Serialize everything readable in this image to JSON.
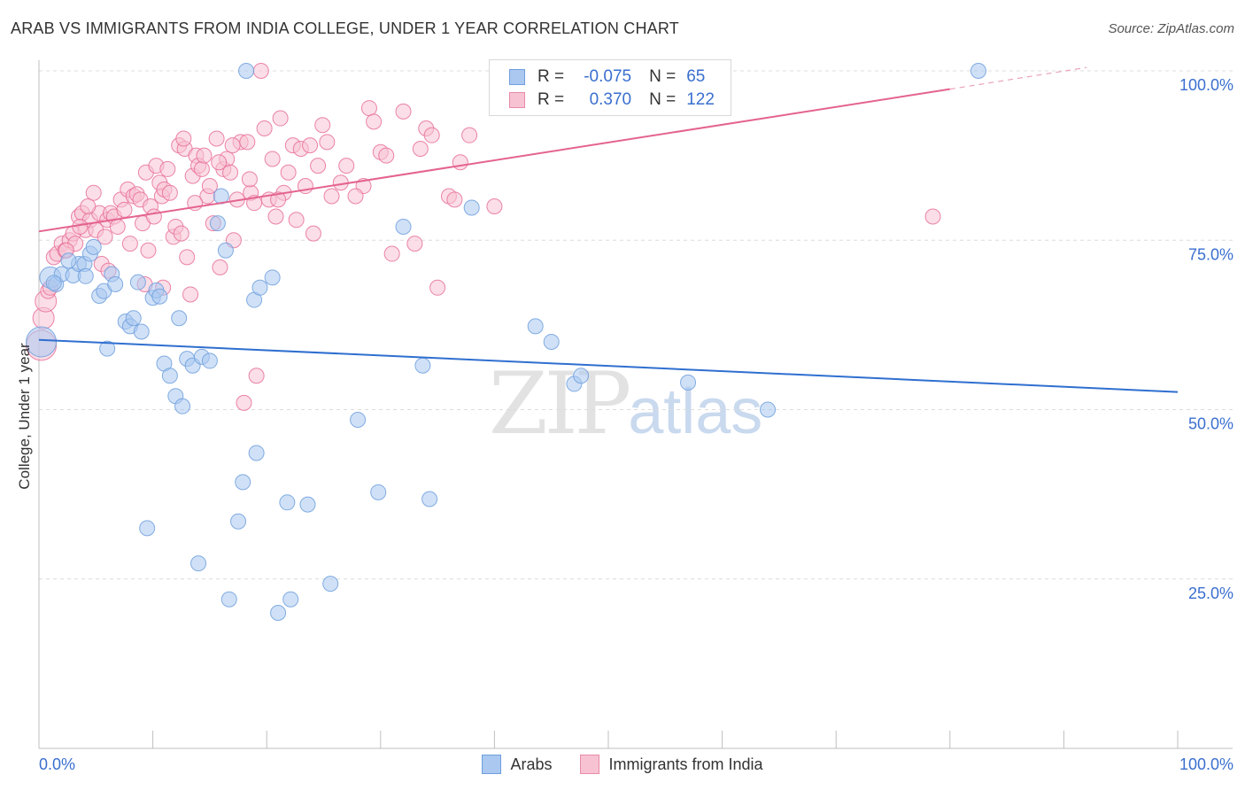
{
  "title": "ARAB VS IMMIGRANTS FROM INDIA COLLEGE, UNDER 1 YEAR CORRELATION CHART",
  "source": "Source: ZipAtlas.com",
  "watermark": {
    "zip": "ZIP",
    "atlas": "atlas"
  },
  "legend": {
    "rows": [
      {
        "r_label": "R =",
        "r_value": "-0.075",
        "n_label": "N =",
        "n_value": "65",
        "color": "#aac8f0",
        "border": "#6f9fdd"
      },
      {
        "r_label": "R =",
        "r_value": "0.370",
        "n_label": "N =",
        "n_value": "122",
        "color": "#f7c3d3",
        "border": "#e88aa8"
      }
    ]
  },
  "bottom_legend": [
    "Arabs",
    "Immigrants from India"
  ],
  "chart_data": {
    "type": "scatter",
    "title": "ARAB VS IMMIGRANTS FROM INDIA COLLEGE, UNDER 1 YEAR CORRELATION CHART",
    "xlabel": "",
    "ylabel": "College, Under 1 year",
    "xlim": [
      0,
      100
    ],
    "ylim": [
      0,
      104
    ],
    "x_tick_labels": [
      "0.0%",
      "100.0%"
    ],
    "y_tick_labels": [
      "25.0%",
      "50.0%",
      "75.0%",
      "100.0%"
    ],
    "y_ticks": [
      25,
      50,
      75,
      100
    ],
    "grid": true,
    "series": [
      {
        "name": "Arabs",
        "color": "#6f9fdd",
        "fill": "#aac8f0",
        "trend": {
          "x": [
            0,
            100
          ],
          "y": [
            60.3,
            52.6
          ]
        },
        "points": [
          [
            0.2,
            60.0,
            3
          ],
          [
            1.0,
            69.5,
            2
          ],
          [
            1.5,
            68.5,
            1
          ],
          [
            2.0,
            70.0,
            1
          ],
          [
            3.0,
            69.8,
            1
          ],
          [
            3.5,
            71.5,
            1
          ],
          [
            4.0,
            71.5,
            1
          ],
          [
            4.1,
            69.7,
            1
          ],
          [
            4.5,
            73.0,
            1
          ],
          [
            4.8,
            74.0,
            1
          ],
          [
            5.3,
            66.8,
            1
          ],
          [
            5.7,
            67.5,
            1
          ],
          [
            6.0,
            59.0,
            1
          ],
          [
            6.4,
            70.0,
            1
          ],
          [
            6.7,
            68.5,
            1
          ],
          [
            7.6,
            63.0,
            1
          ],
          [
            8.0,
            62.3,
            1
          ],
          [
            8.3,
            63.5,
            1
          ],
          [
            8.7,
            68.8,
            1
          ],
          [
            9.0,
            61.5,
            1
          ],
          [
            9.5,
            32.5,
            1
          ],
          [
            10.0,
            66.5,
            1
          ],
          [
            10.3,
            67.6,
            1
          ],
          [
            10.6,
            66.7,
            1
          ],
          [
            11.0,
            56.8,
            1
          ],
          [
            11.5,
            55.0,
            1
          ],
          [
            12.0,
            52.0,
            1
          ],
          [
            12.3,
            63.5,
            1
          ],
          [
            12.6,
            50.5,
            1
          ],
          [
            13.0,
            57.5,
            1
          ],
          [
            13.5,
            56.5,
            1
          ],
          [
            14.0,
            27.3,
            1
          ],
          [
            14.3,
            57.8,
            1
          ],
          [
            15.0,
            57.2,
            1
          ],
          [
            15.7,
            77.5,
            1
          ],
          [
            16.0,
            81.5,
            1
          ],
          [
            16.4,
            73.5,
            1
          ],
          [
            16.7,
            22.0,
            1
          ],
          [
            17.5,
            33.5,
            1
          ],
          [
            17.9,
            39.3,
            1
          ],
          [
            18.2,
            100.0,
            1
          ],
          [
            18.9,
            66.2,
            1
          ],
          [
            19.1,
            43.6,
            1
          ],
          [
            19.4,
            68.0,
            1
          ],
          [
            20.5,
            69.5,
            1
          ],
          [
            21.0,
            20.0,
            1
          ],
          [
            21.8,
            36.3,
            1
          ],
          [
            22.1,
            22.0,
            1
          ],
          [
            23.6,
            36.0,
            1
          ],
          [
            25.6,
            24.3,
            1
          ],
          [
            28.0,
            48.5,
            1
          ],
          [
            29.8,
            37.8,
            1
          ],
          [
            32.0,
            77.0,
            1
          ],
          [
            33.7,
            56.5,
            1
          ],
          [
            34.3,
            36.8,
            1
          ],
          [
            38.0,
            79.8,
            1
          ],
          [
            43.6,
            62.3,
            1
          ],
          [
            45.0,
            60.0,
            1
          ],
          [
            47.0,
            53.8,
            1
          ],
          [
            47.6,
            55.0,
            1
          ],
          [
            57.0,
            54.0,
            1
          ],
          [
            64.0,
            50.0,
            1
          ],
          [
            82.5,
            100.0,
            1
          ],
          [
            1.3,
            68.7,
            1
          ],
          [
            2.6,
            72.0,
            1
          ]
        ]
      },
      {
        "name": "Immigrants from India",
        "color": "#e8709a",
        "fill": "#f7c3d3",
        "trend": {
          "x": [
            0,
            80
          ],
          "y": [
            76.3,
            97.3
          ]
        },
        "trend_dashed": {
          "x": [
            80,
            92
          ],
          "y": [
            97.3,
            100.5
          ]
        },
        "points": [
          [
            0.2,
            59.5,
            3
          ],
          [
            0.4,
            63.5,
            2
          ],
          [
            0.6,
            66.0,
            2
          ],
          [
            0.8,
            67.5,
            1
          ],
          [
            1.3,
            72.5,
            1
          ],
          [
            1.6,
            73.0,
            1
          ],
          [
            2.0,
            74.5,
            1
          ],
          [
            2.3,
            73.5,
            1
          ],
          [
            2.7,
            75.0,
            1
          ],
          [
            3.0,
            76.0,
            1
          ],
          [
            3.2,
            74.5,
            1
          ],
          [
            3.5,
            78.5,
            1
          ],
          [
            3.8,
            79.0,
            1
          ],
          [
            4.1,
            76.5,
            1
          ],
          [
            4.5,
            78.0,
            1
          ],
          [
            4.8,
            82.0,
            1
          ],
          [
            5.0,
            76.5,
            1
          ],
          [
            5.3,
            79.0,
            1
          ],
          [
            5.5,
            71.5,
            1
          ],
          [
            5.8,
            75.5,
            1
          ],
          [
            6.0,
            78.0,
            1
          ],
          [
            6.3,
            79.0,
            1
          ],
          [
            6.6,
            78.5,
            1
          ],
          [
            6.9,
            77.0,
            1
          ],
          [
            7.2,
            81.0,
            1
          ],
          [
            7.5,
            79.5,
            1
          ],
          [
            7.8,
            82.5,
            1
          ],
          [
            8.0,
            74.5,
            1
          ],
          [
            8.3,
            81.5,
            1
          ],
          [
            8.6,
            81.8,
            1
          ],
          [
            8.9,
            81.0,
            1
          ],
          [
            9.1,
            77.5,
            1
          ],
          [
            9.4,
            85.0,
            1
          ],
          [
            9.6,
            73.5,
            1
          ],
          [
            9.8,
            80.0,
            1
          ],
          [
            10.1,
            78.5,
            1
          ],
          [
            10.3,
            86.0,
            1
          ],
          [
            10.6,
            83.5,
            1
          ],
          [
            10.8,
            81.5,
            1
          ],
          [
            11.0,
            82.5,
            1
          ],
          [
            11.3,
            85.5,
            1
          ],
          [
            11.5,
            82.0,
            1
          ],
          [
            11.8,
            75.5,
            1
          ],
          [
            12.0,
            77.0,
            1
          ],
          [
            12.3,
            89.0,
            1
          ],
          [
            12.5,
            76.0,
            1
          ],
          [
            12.8,
            88.5,
            1
          ],
          [
            13.0,
            72.5,
            1
          ],
          [
            13.3,
            67.0,
            1
          ],
          [
            13.5,
            84.5,
            1
          ],
          [
            13.8,
            87.5,
            1
          ],
          [
            14.0,
            86.0,
            1
          ],
          [
            14.3,
            85.5,
            1
          ],
          [
            14.5,
            87.5,
            1
          ],
          [
            14.8,
            81.5,
            1
          ],
          [
            15.0,
            83.0,
            1
          ],
          [
            15.3,
            77.5,
            1
          ],
          [
            15.6,
            90.0,
            1
          ],
          [
            15.9,
            71.0,
            1
          ],
          [
            16.2,
            85.5,
            1
          ],
          [
            16.5,
            87.0,
            1
          ],
          [
            16.8,
            85.0,
            1
          ],
          [
            17.1,
            75.0,
            1
          ],
          [
            17.4,
            81.0,
            1
          ],
          [
            17.7,
            89.5,
            1
          ],
          [
            18.0,
            51.0,
            1
          ],
          [
            18.3,
            89.5,
            1
          ],
          [
            18.6,
            82.0,
            1
          ],
          [
            18.9,
            80.5,
            1
          ],
          [
            19.1,
            55.0,
            1
          ],
          [
            19.5,
            100.0,
            1
          ],
          [
            19.8,
            91.5,
            1
          ],
          [
            20.2,
            81.0,
            1
          ],
          [
            20.5,
            87.0,
            1
          ],
          [
            20.8,
            78.5,
            1
          ],
          [
            21.2,
            93.0,
            1
          ],
          [
            21.5,
            82.0,
            1
          ],
          [
            21.9,
            85.0,
            1
          ],
          [
            22.3,
            89.0,
            1
          ],
          [
            22.6,
            78.0,
            1
          ],
          [
            23.0,
            88.5,
            1
          ],
          [
            23.4,
            83.0,
            1
          ],
          [
            23.8,
            89.0,
            1
          ],
          [
            24.1,
            76.0,
            1
          ],
          [
            24.5,
            86.0,
            1
          ],
          [
            24.9,
            92.0,
            1
          ],
          [
            25.3,
            89.5,
            1
          ],
          [
            25.7,
            81.5,
            1
          ],
          [
            27.0,
            86.0,
            1
          ],
          [
            28.5,
            83.0,
            1
          ],
          [
            29.0,
            94.5,
            1
          ],
          [
            29.4,
            92.5,
            1
          ],
          [
            30.0,
            88.0,
            1
          ],
          [
            31.0,
            73.0,
            1
          ],
          [
            32.0,
            94.0,
            1
          ],
          [
            33.5,
            88.5,
            1
          ],
          [
            34.0,
            91.5,
            1
          ],
          [
            34.5,
            90.5,
            1
          ],
          [
            35.0,
            68.0,
            1
          ],
          [
            36.0,
            81.5,
            1
          ],
          [
            36.5,
            81.0,
            1
          ],
          [
            37.0,
            86.5,
            1
          ],
          [
            37.8,
            90.5,
            1
          ],
          [
            40.0,
            80.0,
            1
          ],
          [
            78.5,
            78.5,
            1
          ],
          [
            1.0,
            68.0,
            1
          ],
          [
            2.4,
            73.5,
            1
          ],
          [
            3.6,
            77.0,
            1
          ],
          [
            4.3,
            80.0,
            1
          ],
          [
            6.1,
            70.5,
            1
          ],
          [
            9.3,
            68.5,
            1
          ],
          [
            10.9,
            68.0,
            1
          ],
          [
            13.7,
            80.5,
            1
          ],
          [
            15.8,
            86.5,
            1
          ],
          [
            26.5,
            83.5,
            1
          ],
          [
            27.8,
            81.5,
            1
          ],
          [
            17.0,
            89.0,
            1
          ],
          [
            21.0,
            81.0,
            1
          ],
          [
            30.5,
            87.5,
            1
          ],
          [
            33.0,
            74.5,
            1
          ],
          [
            18.5,
            84.0,
            1
          ],
          [
            12.7,
            90.0,
            1
          ]
        ]
      }
    ]
  }
}
